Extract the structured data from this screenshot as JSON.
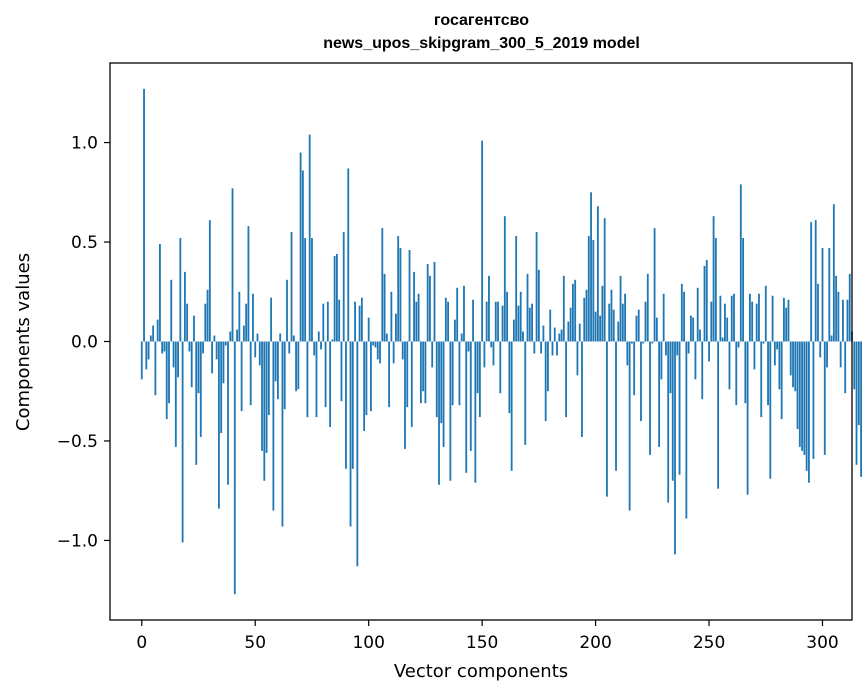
{
  "chart_data": {
    "type": "bar",
    "title": "госагентсво",
    "subtitle": "news_upos_skipgram_300_5_2019 model",
    "xlabel": "Vector components",
    "ylabel": "Components values",
    "xlim": [
      -14,
      313
    ],
    "ylim": [
      -1.4,
      1.4
    ],
    "xticks": [
      0,
      50,
      100,
      150,
      200,
      250,
      300
    ],
    "xtick_labels": [
      "0",
      "50",
      "100",
      "150",
      "200",
      "250",
      "300"
    ],
    "yticks": [
      -1.0,
      -0.5,
      0.0,
      0.5,
      1.0
    ],
    "ytick_labels": [
      "−1.0",
      "−0.5",
      "0.0",
      "0.5",
      "1.0"
    ],
    "color": "#1f77b4",
    "values": [
      -0.19,
      1.27,
      -0.14,
      -0.09,
      0.03,
      0.08,
      -0.27,
      0.11,
      0.49,
      -0.06,
      -0.05,
      -0.39,
      -0.31,
      0.31,
      -0.13,
      -0.53,
      -0.18,
      0.52,
      -1.01,
      0.35,
      0.19,
      -0.05,
      -0.23,
      0.13,
      -0.62,
      -0.26,
      -0.48,
      -0.06,
      0.19,
      0.26,
      0.61,
      -0.16,
      0.03,
      -0.09,
      -0.84,
      -0.46,
      -0.21,
      -0.02,
      -0.72,
      0.05,
      0.77,
      -1.27,
      0.06,
      0.25,
      -0.35,
      0.08,
      0.19,
      0.58,
      -0.32,
      0.24,
      -0.08,
      0.04,
      -0.12,
      -0.55,
      -0.7,
      -0.56,
      -0.37,
      0.22,
      -0.85,
      -0.2,
      -0.29,
      0.04,
      -0.93,
      -0.34,
      0.31,
      -0.06,
      0.55,
      0.03,
      -0.25,
      -0.24,
      0.95,
      0.86,
      0.52,
      -0.38,
      1.04,
      0.52,
      -0.07,
      -0.38,
      0.05,
      -0.04,
      0.19,
      -0.33,
      0.2,
      -0.43,
      0.01,
      0.43,
      0.44,
      0.21,
      -0.3,
      0.55,
      -0.64,
      0.87,
      -0.93,
      -0.64,
      0.2,
      -1.13,
      0.18,
      0.22,
      -0.45,
      -0.37,
      0.12,
      -0.35,
      -0.02,
      -0.03,
      -0.09,
      -0.11,
      0.57,
      0.34,
      0.04,
      -0.33,
      0.25,
      -0.11,
      0.14,
      0.53,
      0.47,
      -0.09,
      -0.54,
      -0.33,
      0.46,
      -0.43,
      0.35,
      0.2,
      0.24,
      -0.31,
      -0.25,
      -0.31,
      0.39,
      0.33,
      -0.13,
      0.4,
      -0.38,
      -0.72,
      -0.41,
      -0.53,
      0.22,
      0.2,
      -0.7,
      -0.32,
      0.11,
      0.27,
      -0.32,
      0.04,
      0.28,
      -0.66,
      -0.05,
      -0.55,
      0.21,
      -0.71,
      -0.26,
      -0.38,
      1.01,
      -0.13,
      0.2,
      0.33,
      -0.03,
      -0.12,
      0.2,
      0.2,
      -0.26,
      0.18,
      0.63,
      0.25,
      -0.36,
      -0.65,
      0.11,
      0.53,
      0.18,
      0.25,
      0.05,
      -0.52,
      0.34,
      0.17,
      0.19,
      -0.06,
      0.55,
      0.36,
      -0.06,
      0.08,
      -0.4,
      -0.25,
      0.16,
      -0.07,
      0.07,
      -0.07,
      0.04,
      0.06,
      0.33,
      -0.38,
      0.1,
      0.17,
      0.29,
      0.31,
      -0.17,
      0.09,
      -0.48,
      0.22,
      0.26,
      0.53,
      0.75,
      0.51,
      0.15,
      0.68,
      0.13,
      0.28,
      0.62,
      -0.78,
      0.19,
      0.26,
      0.16,
      -0.65,
      0.1,
      0.33,
      0.19,
      0.24,
      -0.12,
      -0.85,
      -0.01,
      -0.27,
      0.13,
      0.16,
      -0.4,
      -0.01,
      0.2,
      0.34,
      -0.57,
      -0.01,
      0.57,
      0.12,
      -0.53,
      -0.19,
      0.24,
      -0.07,
      -0.81,
      -0.26,
      -0.7,
      -1.07,
      -0.07,
      -0.67,
      0.29,
      0.25,
      -0.89,
      -0.06,
      0.13,
      0.12,
      -0.19,
      0.27,
      0.06,
      -0.29,
      0.38,
      0.41,
      -0.1,
      0.2,
      0.63,
      0.52,
      -0.74,
      0.23,
      0.02,
      0.19,
      0.12,
      -0.24,
      0.23,
      0.24,
      -0.32,
      -0.03,
      0.79,
      0.52,
      -0.31,
      -0.77,
      0.24,
      0.2,
      -0.14,
      0.19,
      0.24,
      -0.38,
      -0.01,
      0.28,
      -0.32,
      -0.69,
      0.23,
      -0.12,
      -0.04,
      -0.24,
      -0.39,
      0.22,
      0.17,
      0.21,
      -0.17,
      -0.23,
      -0.25,
      -0.44,
      -0.53,
      -0.55,
      -0.57,
      -0.65,
      -0.71,
      0.6,
      -0.59,
      0.61,
      0.29,
      -0.08,
      0.47,
      -0.57,
      -0.13,
      0.47,
      0.03,
      0.69,
      0.33,
      0.25,
      -0.13,
      0.21,
      -0.26,
      0.21,
      0.34,
      0.05,
      -0.24,
      -0.62,
      -0.42,
      -0.68
    ]
  }
}
